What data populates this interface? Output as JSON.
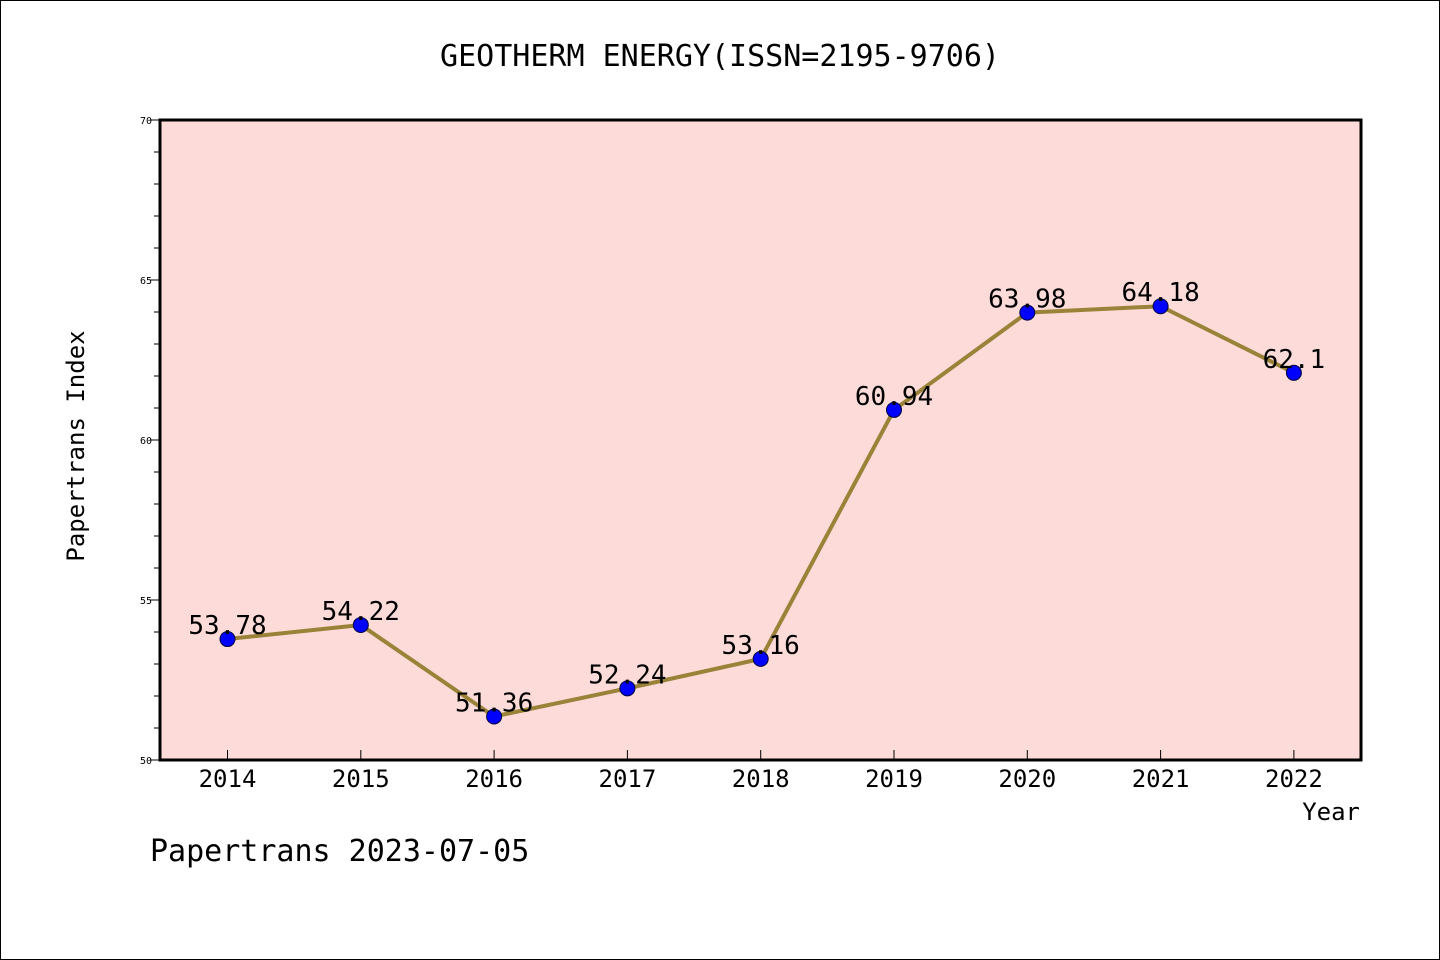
{
  "chart_data": {
    "type": "line",
    "title": "GEOTHERM ENERGY(ISSN=2195-9706)",
    "xlabel": "Year",
    "ylabel": "Papertrans Index",
    "categories": [
      "2014",
      "2015",
      "2016",
      "2017",
      "2018",
      "2019",
      "2020",
      "2021",
      "2022"
    ],
    "values": [
      53.78,
      54.22,
      51.36,
      52.24,
      53.16,
      60.94,
      63.98,
      64.18,
      62.1
    ],
    "data_labels": [
      "53.78",
      "54.22",
      "51.36",
      "52.24",
      "53.16",
      "60.94",
      "63.98",
      "64.18",
      "62.1"
    ],
    "ylim": [
      50,
      70
    ],
    "yticks": [
      50,
      55,
      60,
      65,
      70
    ],
    "ytick_labels": [
      "50",
      "55",
      "60",
      "65",
      "70"
    ],
    "grid": false,
    "colors": {
      "plot_bg": "#fddbd8",
      "line": "#9a8238",
      "marker": "#0000ff",
      "axis": "#000000"
    }
  },
  "footer": "Papertrans 2023-07-05"
}
